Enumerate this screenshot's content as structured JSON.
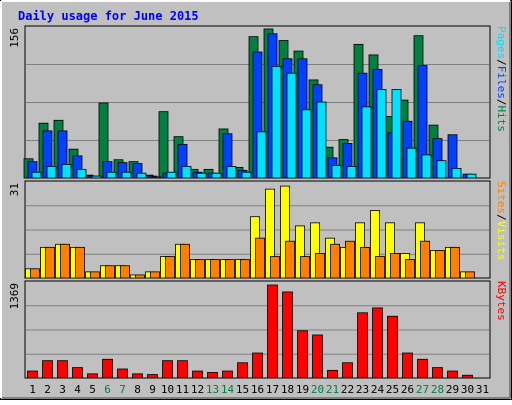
{
  "chart_data": {
    "type": "bar",
    "title": "Daily usage for June 2015",
    "days": [
      "1",
      "2",
      "3",
      "4",
      "5",
      "6",
      "7",
      "8",
      "9",
      "10",
      "11",
      "12",
      "13",
      "14",
      "15",
      "16",
      "17",
      "18",
      "19",
      "20",
      "21",
      "22",
      "23",
      "24",
      "25",
      "26",
      "27",
      "28",
      "29",
      "30",
      "31"
    ],
    "weekend_days": [
      "6",
      "7",
      "13",
      "14",
      "20",
      "21",
      "27",
      "28"
    ],
    "panels": [
      {
        "id": "top",
        "ymax_label": "156",
        "ylim": [
          0,
          156
        ],
        "axis_labels": [
          "Pages",
          "/",
          "Files",
          "/",
          "Hits"
        ],
        "series": [
          {
            "name": "Hits",
            "color": "#008040",
            "values": [
              20,
              57,
              60,
              30,
              3,
              78,
              19,
              17,
              3,
              69,
              43,
              9,
              9,
              51,
              11,
              147,
              155,
              143,
              132,
              102,
              32,
              40,
              139,
              128,
              64,
              81,
              148,
              55,
              0,
              0,
              0
            ]
          },
          {
            "name": "Files",
            "color": "#0040ff",
            "values": [
              17,
              49,
              49,
              23,
              2,
              17,
              16,
              15,
              2,
              5,
              35,
              6,
              5,
              46,
              8,
              131,
              150,
              124,
              124,
              97,
              21,
              36,
              109,
              113,
              47,
              59,
              117,
              41,
              45,
              4,
              0
            ]
          },
          {
            "name": "Pages",
            "color": "#00e0ff",
            "values": [
              6,
              12,
              14,
              9,
              2,
              6,
              6,
              5,
              1,
              6,
              12,
              5,
              5,
              12,
              6,
              48,
              116,
              109,
              71,
              79,
              13,
              12,
              74,
              92,
              92,
              31,
              24,
              18,
              10,
              4,
              0
            ]
          }
        ]
      },
      {
        "id": "mid",
        "ymax_label": "31",
        "ylim": [
          0,
          31
        ],
        "axis_labels": [
          "Sites",
          "/",
          "Visits"
        ],
        "series": [
          {
            "name": "Visits",
            "color": "#ffff00",
            "values": [
              3,
              10,
              11,
              10,
              2,
              4,
              4,
              1,
              2,
              7,
              11,
              6,
              6,
              6,
              6,
              20,
              29,
              30,
              17,
              18,
              13,
              10,
              18,
              22,
              18,
              8,
              18,
              9,
              10,
              2,
              0
            ]
          },
          {
            "name": "Sites",
            "color": "#ff8000",
            "values": [
              3,
              10,
              11,
              10,
              2,
              4,
              4,
              1,
              2,
              7,
              11,
              6,
              6,
              6,
              6,
              13,
              7,
              12,
              7,
              8,
              11,
              12,
              10,
              7,
              8,
              6,
              12,
              9,
              10,
              2,
              0
            ]
          }
        ]
      },
      {
        "id": "bot",
        "ymax_label": "1369",
        "ylim": [
          0,
          1369
        ],
        "axis_labels": [
          "KBytes"
        ],
        "series": [
          {
            "name": "KBytes",
            "color": "#ff0000",
            "values": [
              100,
              250,
              250,
              150,
              60,
              270,
              130,
              60,
              50,
              250,
              250,
              100,
              80,
              100,
              220,
              360,
              1340,
              1240,
              680,
              620,
              110,
              220,
              940,
              1010,
              890,
              360,
              270,
              150,
              100,
              40,
              0
            ]
          }
        ]
      }
    ],
    "grid": true
  }
}
